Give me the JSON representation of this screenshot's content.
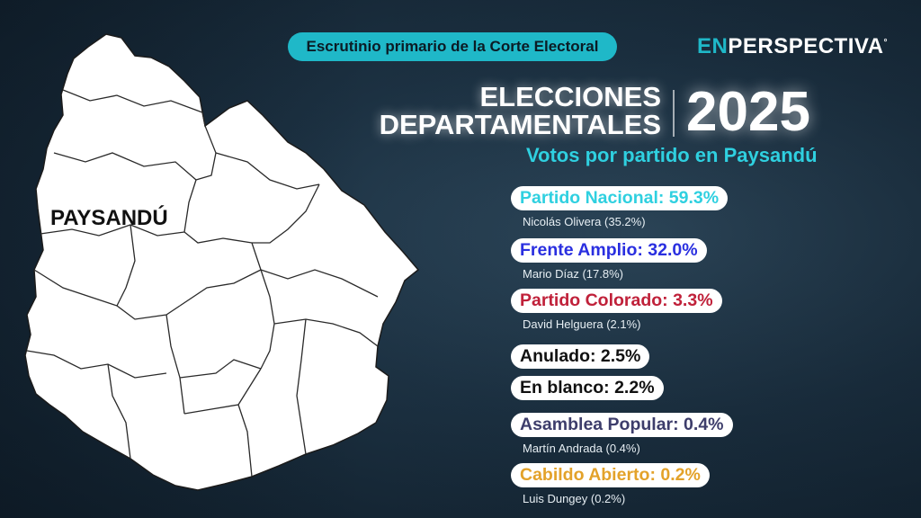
{
  "header": {
    "source_label": "Escrutinio primario de la Corte Electoral",
    "logo_en": "EN",
    "logo_rest": "PERSPECTIVA",
    "logo_mark": "°"
  },
  "title": {
    "line1": "ELECCIONES",
    "line2": "DEPARTAMENTALES",
    "year": "2025",
    "subtitle": "Votos por partido en Paysandú"
  },
  "map": {
    "highlight_label": "PAYSANDÚ"
  },
  "results": [
    {
      "label": "Partido Nacional: 59.3%",
      "candidate": "Nicolás Olivera (35.2%)",
      "color": "#2fd0e0"
    },
    {
      "label": "Frente Amplio: 32.0%",
      "candidate": "Mario Díaz (17.8%)",
      "color": "#2a2fe0"
    },
    {
      "label": "Partido Colorado: 3.3%",
      "candidate": "David Helguera (2.1%)",
      "color": "#c0213a"
    },
    {
      "label": "Anulado: 2.5%",
      "candidate": "",
      "color": "#111111"
    },
    {
      "label": "En blanco: 2.2%",
      "candidate": "",
      "color": "#111111"
    },
    {
      "label": "Asamblea Popular: 0.4%",
      "candidate": "Martín Andrada (0.4%)",
      "color": "#3d3d6b"
    },
    {
      "label": "Cabildo Abierto: 0.2%",
      "candidate": "Luis Dungey (0.2%)",
      "color": "#e3a22a"
    }
  ]
}
